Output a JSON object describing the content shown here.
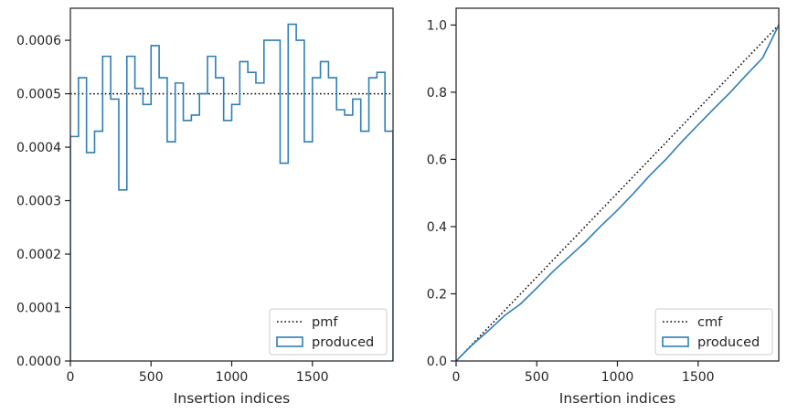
{
  "chart_data": [
    {
      "type": "line",
      "title": "",
      "xlabel": "Insertion indices",
      "ylabel": "",
      "xlim": [
        0,
        2000
      ],
      "ylim": [
        0,
        0.00066
      ],
      "xticks": [
        0,
        500,
        1000,
        1500
      ],
      "xtick_labels": [
        "0",
        "500",
        "1000",
        "1500"
      ],
      "yticks": [
        0,
        0.0001,
        0.0002,
        0.0003,
        0.0004,
        0.0005,
        0.0006
      ],
      "ytick_labels": [
        "0.0000",
        "0.0001",
        "0.0002",
        "0.0003",
        "0.0004",
        "0.0005",
        "0.0006"
      ],
      "grid": false,
      "legend": "bottom-right",
      "series": [
        {
          "name": "pmf",
          "style": "dotted",
          "color": "#000000",
          "x": [
            0,
            2000
          ],
          "y": [
            0.0005,
            0.0005
          ]
        },
        {
          "name": "produced",
          "style": "step",
          "color": "#2f7fb5",
          "bin_edges": [
            0,
            50,
            100,
            150,
            200,
            250,
            300,
            350,
            400,
            450,
            500,
            550,
            600,
            650,
            700,
            750,
            800,
            850,
            900,
            950,
            1000,
            1050,
            1100,
            1150,
            1200,
            1250,
            1300,
            1350,
            1400,
            1450,
            1500,
            1550,
            1600,
            1650,
            1700,
            1750,
            1800,
            1850,
            1900,
            1950,
            2000
          ],
          "values": [
            0.00042,
            0.00053,
            0.00039,
            0.00043,
            0.00057,
            0.00049,
            0.00032,
            0.00057,
            0.00051,
            0.00048,
            0.00059,
            0.00053,
            0.00041,
            0.00052,
            0.00045,
            0.00046,
            0.0005,
            0.00057,
            0.00053,
            0.00045,
            0.00048,
            0.00056,
            0.00054,
            0.00052,
            0.0006,
            0.0006,
            0.00037,
            0.00063,
            0.0006,
            0.00041,
            0.00053,
            0.00056,
            0.00053,
            0.00047,
            0.00046,
            0.00049,
            0.00043,
            0.00053,
            0.00054,
            0.00043
          ]
        }
      ]
    },
    {
      "type": "line",
      "title": "",
      "xlabel": "Insertion indices",
      "ylabel": "",
      "xlim": [
        0,
        2000
      ],
      "ylim": [
        0,
        1.05
      ],
      "xticks": [
        0,
        500,
        1000,
        1500
      ],
      "xtick_labels": [
        "0",
        "500",
        "1000",
        "1500"
      ],
      "yticks": [
        0,
        0.2,
        0.4,
        0.6,
        0.8,
        1.0
      ],
      "ytick_labels": [
        "0.0",
        "0.2",
        "0.4",
        "0.6",
        "0.8",
        "1.0"
      ],
      "grid": false,
      "legend": "bottom-right",
      "series": [
        {
          "name": "cmf",
          "style": "dotted",
          "color": "#000000",
          "x": [
            0,
            2000
          ],
          "y": [
            0,
            1.0
          ]
        },
        {
          "name": "produced",
          "style": "line",
          "color": "#2f7fb5",
          "x": [
            0,
            100,
            200,
            300,
            400,
            500,
            600,
            700,
            800,
            900,
            1000,
            1100,
            1200,
            1300,
            1400,
            1500,
            1600,
            1700,
            1800,
            1900,
            2000
          ],
          "y": [
            0,
            0.048,
            0.09,
            0.135,
            0.17,
            0.217,
            0.266,
            0.31,
            0.354,
            0.403,
            0.449,
            0.499,
            0.552,
            0.6,
            0.653,
            0.703,
            0.752,
            0.8,
            0.852,
            0.902,
            1.0
          ]
        }
      ]
    }
  ]
}
